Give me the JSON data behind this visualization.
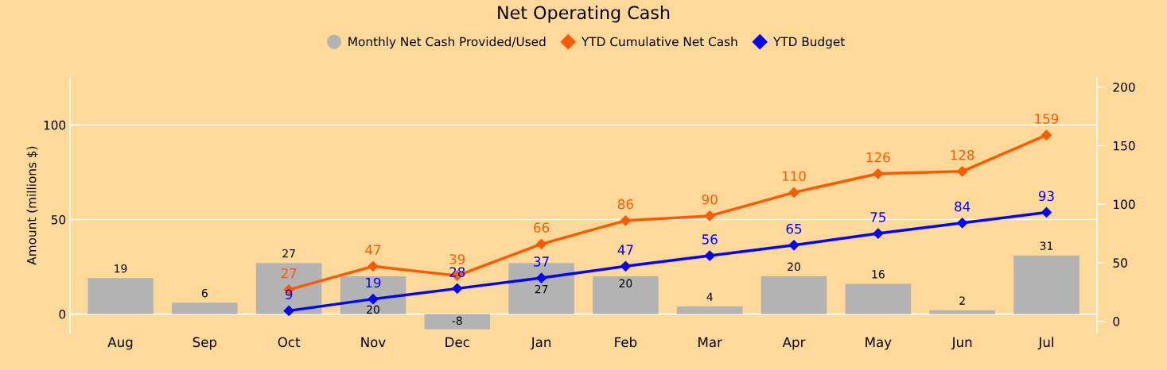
{
  "chart_data": {
    "type": "bar",
    "title": "Net Operating Cash",
    "ylabel": "Amount (millions $)",
    "categories": [
      "Aug",
      "Sep",
      "Oct",
      "Nov",
      "Dec",
      "Jan",
      "Feb",
      "Mar",
      "Apr",
      "May",
      "Jun",
      "Jul"
    ],
    "series": [
      {
        "name": "Monthly Net Cash Provided/Used",
        "color": "#b3b3b3",
        "values": [
          19,
          6,
          27,
          20,
          -8,
          27,
          20,
          4,
          20,
          16,
          2,
          31
        ]
      },
      {
        "name": "YTD Cumulative Net Cash",
        "type": "line",
        "axis": "y2",
        "color": "#ff5a00",
        "marker": "diamond",
        "values": [
          null,
          null,
          27,
          47,
          39,
          66,
          86,
          90,
          110,
          126,
          128,
          159
        ]
      },
      {
        "name": "YTD Budget",
        "type": "line",
        "axis": "y2",
        "color": "#0000ff",
        "marker": "diamond",
        "values": [
          null,
          null,
          9,
          19,
          28,
          37,
          47,
          56,
          65,
          75,
          84,
          93
        ]
      }
    ],
    "ylim": [
      -10,
      125
    ],
    "yticks": [
      0,
      50,
      100
    ],
    "y2lim": [
      -10,
      208
    ],
    "y2ticks": [
      0,
      50,
      100,
      150,
      200
    ],
    "grid": "y",
    "legend": "top",
    "data_labels": true,
    "line_style": "solid"
  }
}
